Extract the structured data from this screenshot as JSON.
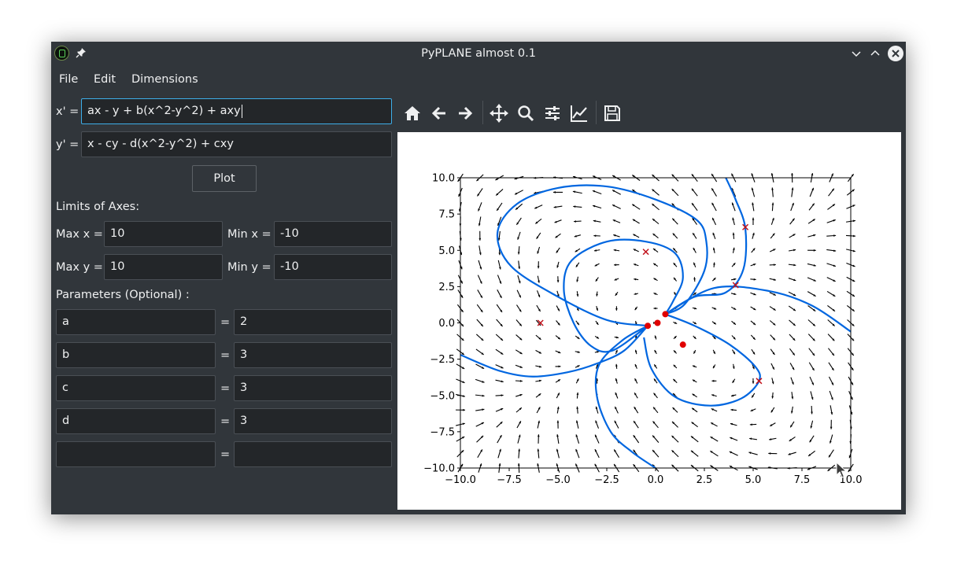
{
  "window": {
    "title": "PyPLANE almost 0.1"
  },
  "menu": [
    "File",
    "Edit",
    "Dimensions"
  ],
  "equations": {
    "xprime_label": "x' =",
    "xprime_value": "ax - y + b(x^2-y^2) + axy",
    "yprime_label": "y' =",
    "yprime_value": "x - cy - d(x^2-y^2) + cxy"
  },
  "plot_button": "Plot",
  "limits": {
    "heading": "Limits of Axes:",
    "max_x_label": "Max x =",
    "max_x": "10",
    "min_x_label": "Min x =",
    "min_x": "-10",
    "max_y_label": "Max y =",
    "max_y": "10",
    "min_y_label": "Min y =",
    "min_y": "-10"
  },
  "parameters": {
    "heading": "Parameters (Optional) :",
    "eq": "=",
    "rows": [
      {
        "name": "a",
        "value": "2"
      },
      {
        "name": "b",
        "value": "3"
      },
      {
        "name": "c",
        "value": "3"
      },
      {
        "name": "d",
        "value": "3"
      },
      {
        "name": "",
        "value": ""
      }
    ]
  },
  "toolbar_icons": [
    "home-icon",
    "back-icon",
    "forward-icon",
    "pan-icon",
    "zoom-icon",
    "configure-subplots-icon",
    "edit-axes-icon",
    "save-icon"
  ],
  "colors": {
    "trajectory": "#0066e0",
    "fixed_point": "#e00000",
    "window_bg": "#31363b",
    "field_bg": "#232629",
    "focus": "#3daee9"
  },
  "chart_data": {
    "type": "scatter",
    "title": "",
    "xlim": [
      -10,
      10
    ],
    "ylim": [
      -10,
      10
    ],
    "xticks": [
      "−10.0",
      "−7.5",
      "−5.0",
      "−2.5",
      "0.0",
      "2.5",
      "5.0",
      "7.5",
      "10.0"
    ],
    "yticks": [
      "10.0",
      "7.5",
      "5.0",
      "2.5",
      "0.0",
      "−2.5",
      "−5.0",
      "−7.5",
      "−10.0"
    ],
    "xtick_values": [
      -10,
      -7.5,
      -5,
      -2.5,
      0,
      2.5,
      5,
      7.5,
      10
    ],
    "ytick_values": [
      10,
      7.5,
      5,
      2.5,
      0,
      -2.5,
      -5,
      -7.5,
      -10
    ],
    "grid": false,
    "vector_field": {
      "dx": "ax - y + b(x^2-y^2) + axy",
      "dy": "x - cy - d(x^2-y^2) + cxy",
      "samples_per_axis": 21
    },
    "fixed_points": [
      {
        "x": -0.4,
        "y": -0.2
      },
      {
        "x": 0.1,
        "y": 0.0
      },
      {
        "x": 0.5,
        "y": 0.6
      },
      {
        "x": 1.4,
        "y": -1.5
      }
    ],
    "trajectory_starts": [
      {
        "x": 4.6,
        "y": 6.6
      },
      {
        "x": -0.5,
        "y": 4.9
      },
      {
        "x": 4.1,
        "y": 2.6
      },
      {
        "x": -5.9,
        "y": 0.0
      },
      {
        "x": 5.3,
        "y": -4.0
      }
    ],
    "trajectories": [
      [
        [
          -10,
          -2.2
        ],
        [
          -8,
          -3.3
        ],
        [
          -6.3,
          -3.7
        ],
        [
          -4.5,
          -3.4
        ],
        [
          -3,
          -2.8
        ],
        [
          -1.6,
          -1.9
        ],
        [
          -0.4,
          -0.2
        ]
      ],
      [
        [
          -0.4,
          -0.2
        ],
        [
          -2.5,
          0.2
        ],
        [
          -5,
          1.8
        ],
        [
          -7.4,
          3.9
        ],
        [
          -8.1,
          6.2
        ],
        [
          -7.1,
          8.2
        ],
        [
          -5,
          9.3
        ],
        [
          -2.5,
          9.4
        ],
        [
          0,
          8.5
        ],
        [
          2.1,
          7.1
        ],
        [
          2.6,
          5.6
        ],
        [
          2.5,
          3.6
        ],
        [
          1.5,
          1.3
        ],
        [
          0.5,
          0.6
        ]
      ],
      [
        [
          0.5,
          0.6
        ],
        [
          2,
          1.8
        ],
        [
          3.6,
          2.1
        ],
        [
          4.5,
          3.7
        ],
        [
          4.6,
          6.5
        ],
        [
          4.1,
          8.5
        ],
        [
          3.6,
          10
        ]
      ],
      [
        [
          0.5,
          0.6
        ],
        [
          3,
          2.4
        ],
        [
          5.8,
          2.2
        ],
        [
          8,
          1.2
        ],
        [
          10,
          -0.6
        ]
      ],
      [
        [
          0.5,
          0.6
        ],
        [
          0.9,
          1.5
        ],
        [
          1.4,
          3.1
        ],
        [
          1,
          4.8
        ],
        [
          -0.5,
          5.6
        ],
        [
          -2.5,
          5.6
        ],
        [
          -4.3,
          4.3
        ],
        [
          -4.7,
          2.3
        ],
        [
          -4.2,
          0
        ],
        [
          -3.3,
          -1.6
        ],
        [
          -2.2,
          -1.9
        ],
        [
          -0.4,
          -0.2
        ]
      ],
      [
        [
          -0.4,
          -0.2
        ],
        [
          -1.7,
          -1.2
        ],
        [
          -2.9,
          -2.9
        ],
        [
          -3,
          -5.1
        ],
        [
          -2.3,
          -7.5
        ],
        [
          -1.2,
          -8.9
        ],
        [
          0,
          -10
        ]
      ],
      [
        [
          0.5,
          0.6
        ],
        [
          2,
          -0.2
        ],
        [
          3.8,
          -1.5
        ],
        [
          5.1,
          -3
        ],
        [
          5.3,
          -4
        ],
        [
          4.4,
          -5.2
        ],
        [
          2.8,
          -5.7
        ],
        [
          1,
          -5.1
        ],
        [
          -0.2,
          -3.2
        ],
        [
          -0.6,
          -1
        ]
      ]
    ]
  }
}
